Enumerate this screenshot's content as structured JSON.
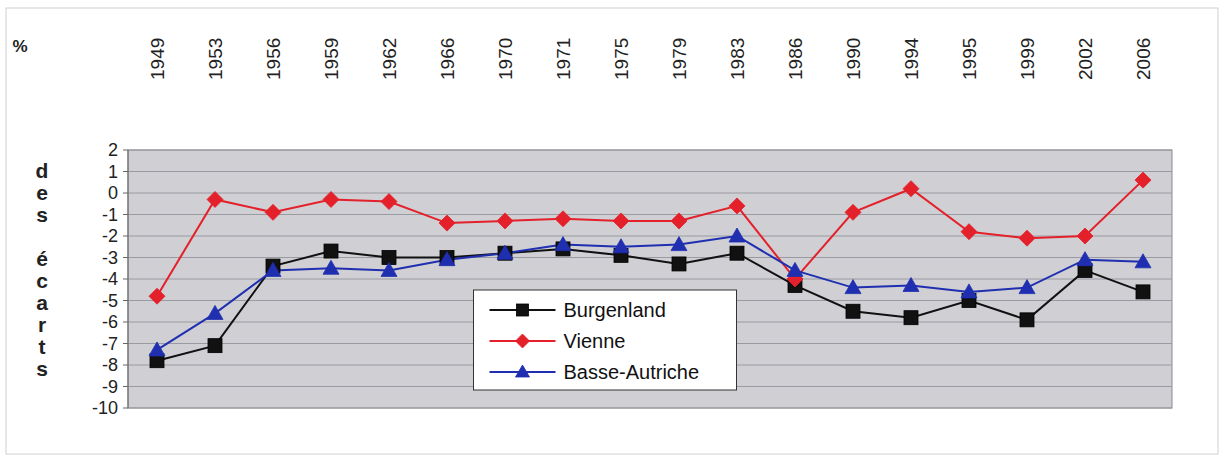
{
  "chart_data": {
    "type": "line",
    "y_label": "% des écarts",
    "categories": [
      "1949",
      "1953",
      "1956",
      "1959",
      "1962",
      "1966",
      "1970",
      "1971",
      "1975",
      "1979",
      "1983",
      "1986",
      "1990",
      "1994",
      "1995",
      "1999",
      "2002",
      "2006"
    ],
    "series": [
      {
        "name": "Burgenland",
        "color": "#111111",
        "marker": "square",
        "values": [
          -7.8,
          -7.1,
          -3.4,
          -2.7,
          -3.0,
          -3.0,
          -2.8,
          -2.6,
          -2.9,
          -3.3,
          -2.8,
          -4.3,
          -5.5,
          -5.8,
          -5.0,
          -5.9,
          -3.6,
          -4.6
        ]
      },
      {
        "name": "Vienne",
        "color": "#e4202a",
        "marker": "diamond",
        "values": [
          -4.8,
          -0.3,
          -0.9,
          -0.3,
          -0.4,
          -1.4,
          -1.3,
          -1.2,
          -1.3,
          -1.3,
          -0.6,
          -4.0,
          -0.9,
          0.2,
          -1.8,
          -2.1,
          -2.0,
          0.6
        ]
      },
      {
        "name": "Basse-Autriche",
        "color": "#1f2fb0",
        "marker": "triangle",
        "values": [
          -7.3,
          -5.6,
          -3.6,
          -3.5,
          -3.6,
          -3.1,
          -2.8,
          -2.4,
          -2.5,
          -2.4,
          -2.0,
          -3.6,
          -4.4,
          -4.3,
          -4.6,
          -4.4,
          -3.1,
          -3.2
        ]
      }
    ],
    "ylim": [
      -10,
      2
    ],
    "yticks": [
      2,
      1,
      0,
      -1,
      -2,
      -3,
      -4,
      -5,
      -6,
      -7,
      -8,
      -9,
      -10
    ],
    "grid": true,
    "legend": "center"
  }
}
